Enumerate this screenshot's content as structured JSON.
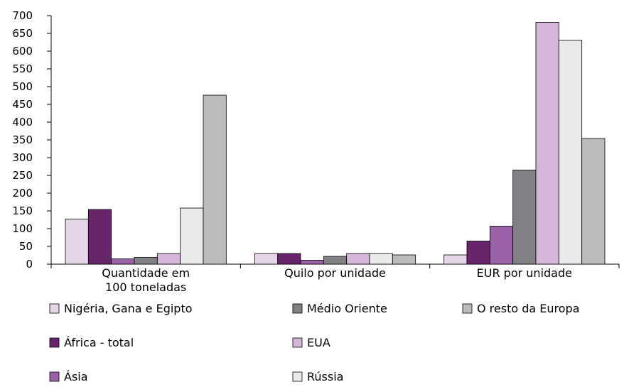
{
  "chart_data": {
    "type": "bar",
    "categories": [
      [
        "Quantidade em",
        "100 toneladas"
      ],
      [
        "Quilo por unidade"
      ],
      [
        "EUR por unidade"
      ]
    ],
    "series": [
      {
        "name": "Nigéria, Gana e Egipto",
        "color": "#e4d6e8",
        "values": [
          127,
          30,
          26
        ]
      },
      {
        "name": "África - total",
        "color": "#67266b",
        "values": [
          154,
          30,
          65
        ]
      },
      {
        "name": "Ásia",
        "color": "#9b62a8",
        "values": [
          15,
          11,
          107
        ]
      },
      {
        "name": "Médio Oriente",
        "color": "#818185",
        "values": [
          19,
          22,
          265
        ]
      },
      {
        "name": "EUA",
        "color": "#d4b6d9",
        "values": [
          30,
          30,
          681
        ]
      },
      {
        "name": "Rússia",
        "color": "#eaeaec",
        "values": [
          158,
          30,
          631
        ]
      },
      {
        "name": "O resto da Europa",
        "color": "#bbbbbe",
        "values": [
          476,
          26,
          354
        ]
      }
    ],
    "y_ticks": [
      0,
      50,
      100,
      150,
      200,
      250,
      300,
      350,
      400,
      450,
      500,
      550,
      600,
      650,
      700
    ],
    "ylim": [
      0,
      700
    ],
    "grid": false,
    "legend_position": "bottom",
    "title": "",
    "xlabel": "",
    "ylabel": ""
  }
}
